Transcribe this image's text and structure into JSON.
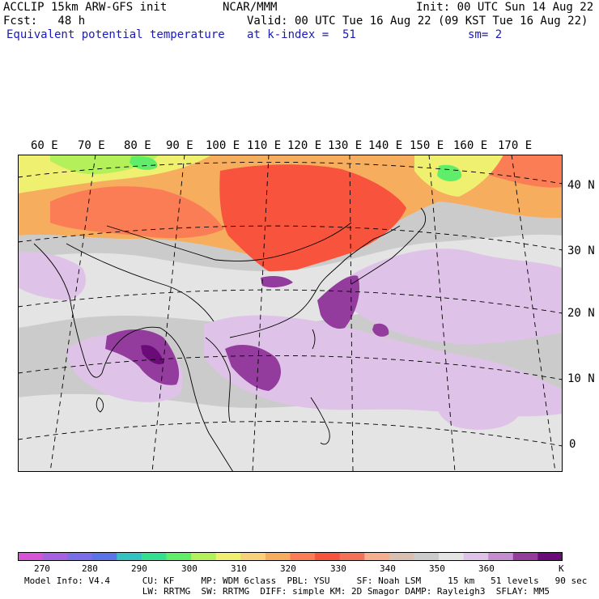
{
  "header": {
    "left_line1": "ACCLIP 15km ARW-GFS init",
    "left_line2": "Fcst:   48 h",
    "field_name": "Equivalent potential temperature",
    "center_line1": "NCAR/MMM",
    "init": "Init: 00 UTC Sun 14 Aug 22",
    "valid": "Valid: 00 UTC Tue 16 Aug 22 (09 KST Tue 16 Aug 22)",
    "level": "at k-index =  51",
    "smoothing": "sm= 2"
  },
  "map": {
    "longitude_labels": [
      "60 E",
      "70 E",
      "80 E",
      "90 E",
      "100 E",
      "110 E",
      "120 E",
      "130 E",
      "140 E",
      "150 E",
      "160 E",
      "170 E"
    ],
    "latitude_labels": [
      "40 N",
      "30 N",
      "20 N",
      "10 N",
      "0"
    ]
  },
  "colorbar": {
    "unit": "K",
    "tick_labels": [
      "270",
      "280",
      "290",
      "300",
      "310",
      "320",
      "330",
      "340",
      "350",
      "360"
    ],
    "colors": [
      "#d653d6",
      "#a661e0",
      "#7a6ee8",
      "#5a73e6",
      "#33c2c2",
      "#33e08f",
      "#60ee6a",
      "#b3f05a",
      "#f0f070",
      "#f7d27a",
      "#f7ad5e",
      "#fb7d55",
      "#f8533d",
      "#f47056",
      "#f5ae8e",
      "#d9bfb2",
      "#cbcbcb",
      "#e4e4e4",
      "#dfc2e7",
      "#c58ccf",
      "#933c9e",
      "#6b0b78"
    ]
  },
  "footer": {
    "line1": "Model Info: V4.4      CU: KF     MP: WDM 6class  PBL: YSU     SF: Noah LSM     15 km   51 levels   90 sec",
    "line2": "                      LW: RRTMG  SW: RRTMG  DIFF: simple KM: 2D Smagor DAMP: Rayleigh3  SFLAY: MM5"
  }
}
